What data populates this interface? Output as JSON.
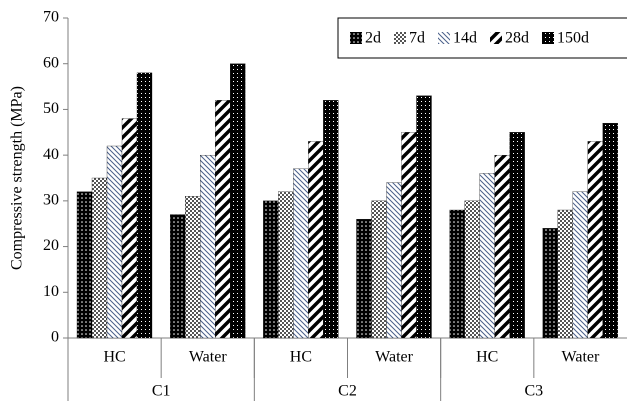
{
  "chart_data": {
    "type": "bar",
    "y_label": "Compressive strength (MPa)",
    "categories": [
      "HC",
      "Water",
      "HC",
      "Water",
      "HC",
      "Water"
    ],
    "groups": [
      "C1",
      "C2",
      "C3"
    ],
    "series": [
      {
        "name": "2d",
        "color": "#000000",
        "values": [
          32,
          27,
          30,
          26,
          28,
          24
        ]
      },
      {
        "name": "7d",
        "color": "#555555",
        "values": [
          35,
          31,
          32,
          30,
          30,
          28
        ]
      },
      {
        "name": "14d",
        "color": "#4a5f8a",
        "values": [
          42,
          40,
          37,
          34,
          36,
          32
        ]
      },
      {
        "name": "28d",
        "color": "#000000",
        "values": [
          48,
          52,
          43,
          45,
          40,
          43
        ]
      },
      {
        "name": "150d",
        "color": "#000000",
        "values": [
          58,
          60,
          52,
          53,
          45,
          47
        ]
      }
    ],
    "ylim": [
      0,
      70
    ],
    "yticks": [
      0,
      10,
      20,
      30,
      40,
      50,
      60,
      70
    ],
    "legend": "top-right"
  }
}
